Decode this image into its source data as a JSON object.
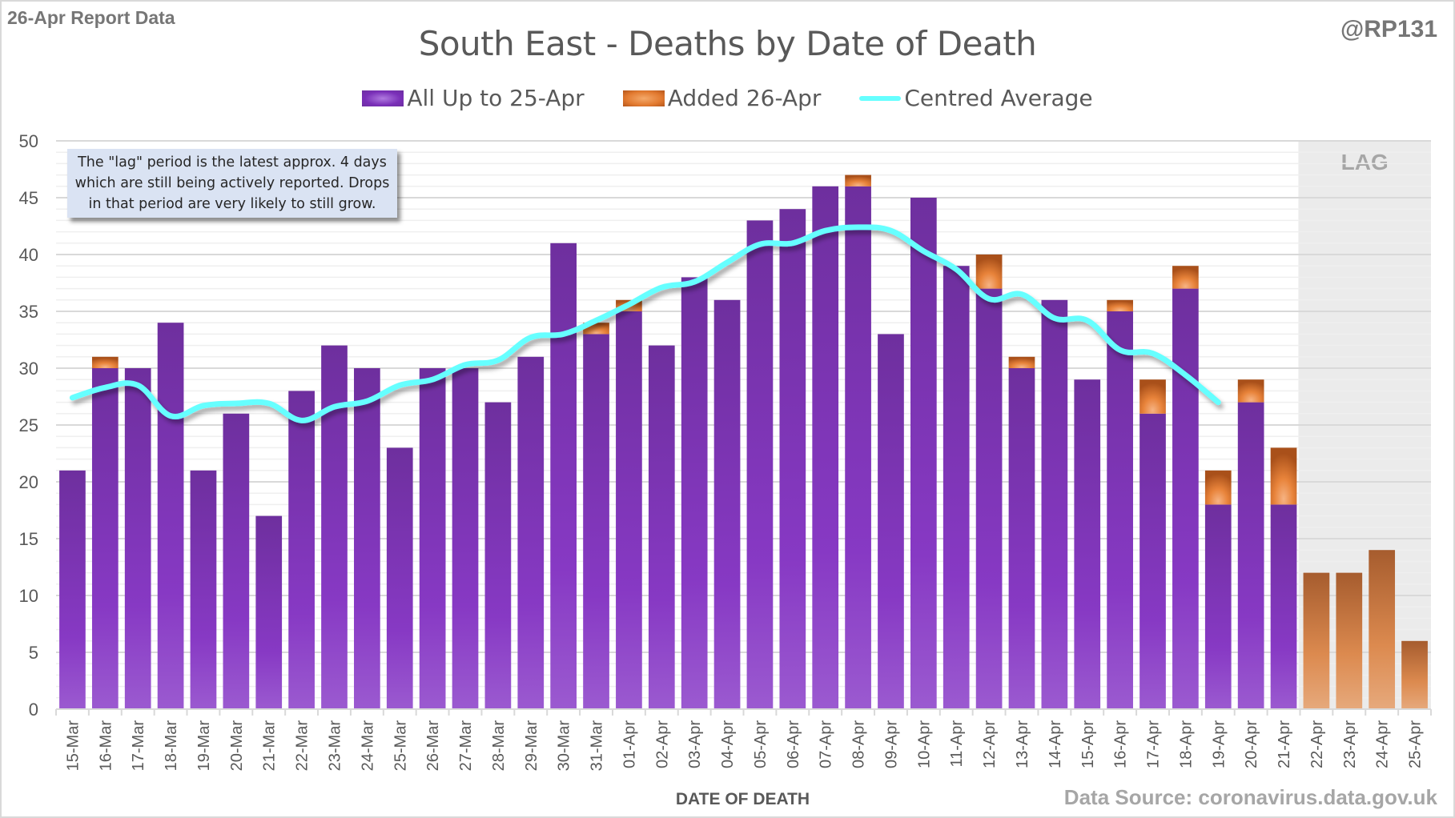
{
  "header": {
    "report_label": "26-Apr Report Data",
    "handle": "@RP131",
    "source": "Data Source: coronavirus.data.gov.uk"
  },
  "note": "The \"lag\" period is the latest approx. 4 days which are still being actively reported.  Drops in that period are very likely to still grow.",
  "lag_label": "LAG",
  "colors": {
    "purple": "#7030a0",
    "orange": "#e07b32",
    "average": "#66ffff",
    "lag_shade": "#ebebeb"
  },
  "chart_data": {
    "type": "bar",
    "stacked": true,
    "title": "South East - Deaths by Date of Death",
    "xlabel": "DATE OF DEATH",
    "ylabel": "",
    "ylim": [
      0,
      50
    ],
    "yticks": [
      0,
      5,
      10,
      15,
      20,
      25,
      30,
      35,
      40,
      45,
      50
    ],
    "minor_grid_step": 1,
    "grid": true,
    "legend_position": "top-center",
    "lag_period": [
      "22-Apr",
      "25-Apr"
    ],
    "categories": [
      "15-Mar",
      "16-Mar",
      "17-Mar",
      "18-Mar",
      "19-Mar",
      "20-Mar",
      "21-Mar",
      "22-Mar",
      "23-Mar",
      "24-Mar",
      "25-Mar",
      "26-Mar",
      "27-Mar",
      "28-Mar",
      "29-Mar",
      "30-Mar",
      "31-Mar",
      "01-Apr",
      "02-Apr",
      "03-Apr",
      "04-Apr",
      "05-Apr",
      "06-Apr",
      "07-Apr",
      "08-Apr",
      "09-Apr",
      "10-Apr",
      "11-Apr",
      "12-Apr",
      "13-Apr",
      "14-Apr",
      "15-Apr",
      "16-Apr",
      "17-Apr",
      "18-Apr",
      "19-Apr",
      "20-Apr",
      "21-Apr",
      "22-Apr",
      "23-Apr",
      "24-Apr",
      "25-Apr"
    ],
    "series": [
      {
        "name": "All Up to 25-Apr",
        "kind": "bar",
        "values": [
          21,
          30,
          30,
          34,
          21,
          26,
          17,
          28,
          32,
          30,
          23,
          30,
          30,
          27,
          31,
          41,
          33,
          35,
          32,
          38,
          36,
          43,
          44,
          46,
          46,
          33,
          45,
          39,
          37,
          30,
          36,
          29,
          35,
          26,
          37,
          18,
          27,
          18,
          0,
          0,
          0,
          0
        ]
      },
      {
        "name": "Added 26-Apr",
        "kind": "bar",
        "values": [
          0,
          1,
          0,
          0,
          0,
          0,
          0,
          0,
          0,
          0,
          0,
          0,
          0,
          0,
          0,
          0,
          1,
          1,
          0,
          0,
          0,
          0,
          0,
          0,
          1,
          0,
          0,
          0,
          3,
          1,
          0,
          0,
          1,
          3,
          2,
          3,
          2,
          5,
          12,
          12,
          14,
          6
        ]
      },
      {
        "name": "Centred Average",
        "kind": "line",
        "values": [
          27.4,
          28.3,
          28.5,
          25.8,
          26.7,
          26.9,
          26.9,
          25.4,
          26.6,
          27.1,
          28.5,
          29.0,
          30.3,
          30.7,
          32.7,
          33.0,
          34.2,
          35.6,
          37.1,
          37.6,
          39.3,
          40.9,
          41.0,
          42.1,
          42.4,
          42.1,
          40.3,
          38.7,
          36.1,
          36.5,
          34.4,
          34.2,
          31.6,
          31.3,
          29.4,
          27.0,
          null,
          null,
          null,
          null,
          null,
          null
        ]
      }
    ]
  }
}
